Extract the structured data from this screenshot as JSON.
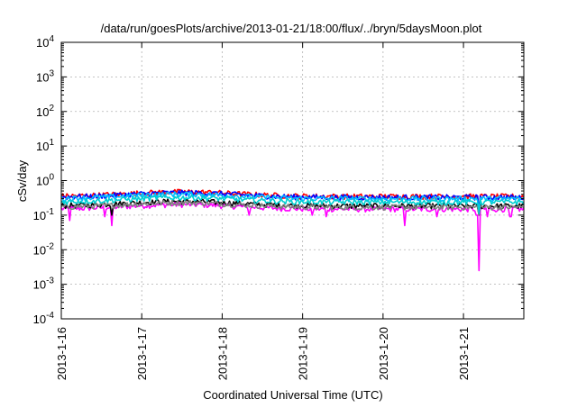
{
  "chart_data": {
    "type": "line",
    "title": "/data/run/goesPlots/archive/2013-01-21/18:00/flux/../bryn/5daysMoon.plot",
    "xlabel": "Coordinated Universal Time (UTC)",
    "ylabel": "cSv/day",
    "y_scale": "log",
    "ylim": [
      0.0001,
      10000
    ],
    "y_ticks": [
      {
        "value": 0.0001,
        "base": "10",
        "exp": "-4"
      },
      {
        "value": 0.001,
        "base": "10",
        "exp": "-3"
      },
      {
        "value": 0.01,
        "base": "10",
        "exp": "-2"
      },
      {
        "value": 0.1,
        "base": "10",
        "exp": "-1"
      },
      {
        "value": 1,
        "base": "10",
        "exp": "0"
      },
      {
        "value": 10,
        "base": "10",
        "exp": "1"
      },
      {
        "value": 100,
        "base": "10",
        "exp": "2"
      },
      {
        "value": 1000,
        "base": "10",
        "exp": "3"
      },
      {
        "value": 10000,
        "base": "10",
        "exp": "4"
      }
    ],
    "xlim": [
      "2013-01-16",
      "2013-01-21T18:00"
    ],
    "x_ticks": [
      {
        "date": "2013-01-16",
        "label": "2013-1-16"
      },
      {
        "date": "2013-01-17",
        "label": "2013-1-17"
      },
      {
        "date": "2013-01-18",
        "label": "2013-1-18"
      },
      {
        "date": "2013-01-19",
        "label": "2013-1-19"
      },
      {
        "date": "2013-01-20",
        "label": "2013-1-20"
      },
      {
        "date": "2013-01-21",
        "label": "2013-1-21"
      }
    ],
    "grid": true,
    "series": [
      {
        "color": "#ff00ff",
        "baseline": 0.15,
        "dips": [
          [
            "2013-01-16T02:30",
            0.07
          ],
          [
            "2013-01-16T13:00",
            0.09
          ],
          [
            "2013-01-16T15:00",
            0.05
          ],
          [
            "2013-01-18T08:00",
            0.1
          ],
          [
            "2013-01-19T03:00",
            0.1
          ],
          [
            "2013-01-19T07:00",
            0.09
          ],
          [
            "2013-01-20T06:30",
            0.05
          ],
          [
            "2013-01-20T16:00",
            0.09
          ],
          [
            "2013-01-21T04:00",
            0.1
          ],
          [
            "2013-01-21T04:45",
            0.0025
          ],
          [
            "2013-01-21T07:00",
            0.09
          ],
          [
            "2013-01-21T14:00",
            0.09
          ]
        ]
      },
      {
        "color": "#000000",
        "baseline": 0.185,
        "dips": [
          [
            "2013-01-16T15:00",
            0.1
          ],
          [
            "2013-01-21T04:45",
            0.1
          ]
        ]
      },
      {
        "color": "#808080",
        "baseline": 0.17,
        "dips": [
          [
            "2013-01-21T04:45",
            0.1
          ]
        ]
      },
      {
        "color": "#ff0000",
        "baseline": 0.35,
        "dips": [
          [
            "2013-01-21T04:45",
            0.15
          ]
        ]
      },
      {
        "color": "#0000ff",
        "baseline": 0.33,
        "dips": [
          [
            "2013-01-21T04:45",
            0.14
          ]
        ]
      },
      {
        "color": "#00bfff",
        "baseline": 0.3,
        "dips": [
          [
            "2013-01-21T04:45",
            0.13
          ]
        ]
      },
      {
        "color": "#00ced1",
        "baseline": 0.24,
        "dips": [
          [
            "2013-01-21T04:45",
            0.11
          ]
        ]
      }
    ]
  }
}
